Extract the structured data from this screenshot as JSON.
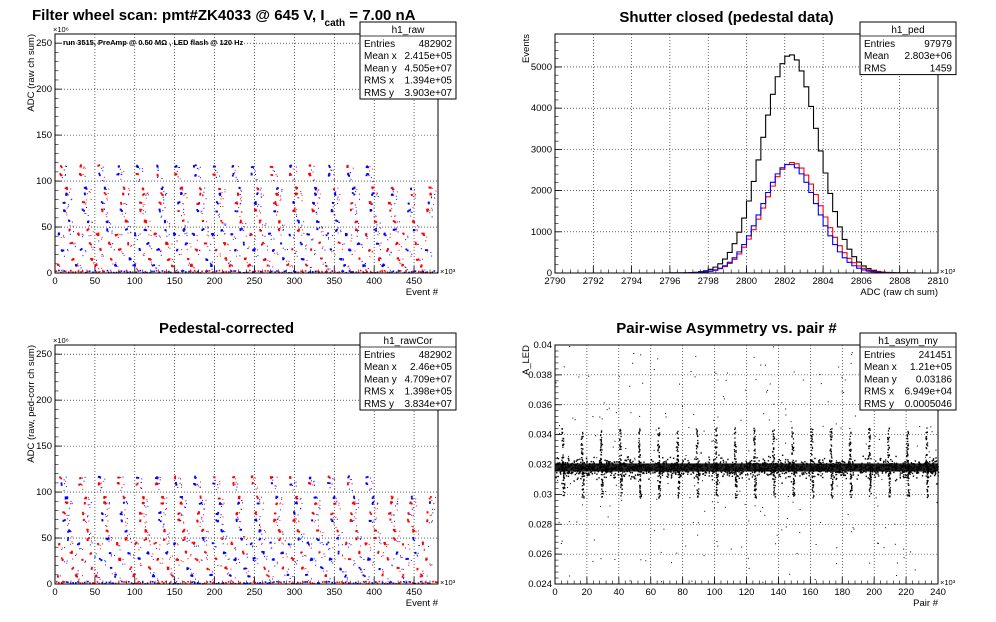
{
  "top_title": {
    "prefix": "Filter wheel scan: pmt#ZK4033 @   645 V, I",
    "sub": "cath",
    "suffix": " = 7.00 nA"
  },
  "chart_data": [
    {
      "id": "raw",
      "type": "scatter",
      "title": "",
      "annotation": "run 3515, PreAmp @ 0.50 MΩ , LED flash @  120 Hz",
      "xlabel": "Event #",
      "ylabel": "ADC (raw ch sum)",
      "x_exponent": "×10³",
      "y_exponent": "×10⁶",
      "xlim": [
        0,
        480
      ],
      "ylim": [
        0,
        260
      ],
      "xticks": [
        "0",
        "50",
        "100",
        "150",
        "200",
        "250",
        "300",
        "350",
        "400",
        "450"
      ],
      "yticks": [
        "0",
        "50",
        "100",
        "150",
        "200",
        "250"
      ],
      "grid": true,
      "series_colors": [
        "#ff0000",
        "#0000ff"
      ],
      "bands": [
        {
          "y": 117,
          "x_start": 5,
          "period": 24,
          "until": 410
        },
        {
          "y": 108,
          "x_start": 5,
          "period": 24,
          "until": 410
        },
        {
          "y": 93,
          "x_start": 12,
          "period": 24,
          "until": 470
        },
        {
          "y": 87,
          "x_start": 12,
          "period": 24,
          "until": 470
        },
        {
          "y": 77,
          "x_start": 9,
          "period": 24,
          "until": 470
        },
        {
          "y": 69,
          "x_start": 9,
          "period": 24,
          "until": 470
        },
        {
          "y": 57,
          "x_start": 15,
          "period": 24,
          "until": 470
        },
        {
          "y": 48,
          "x_start": 15,
          "period": 24,
          "until": 470
        },
        {
          "y": 43,
          "x_start": 3,
          "period": 24,
          "until": 470
        },
        {
          "y": 33,
          "x_start": 18,
          "period": 24,
          "until": 470
        },
        {
          "y": 26,
          "x_start": 7,
          "period": 24,
          "until": 470
        },
        {
          "y": 16,
          "x_start": 20,
          "period": 24,
          "until": 470
        },
        {
          "y": 9,
          "x_start": 1,
          "period": 24,
          "until": 470
        }
      ],
      "stats": {
        "name": "h1_raw",
        "rows": [
          [
            "Entries",
            "482902"
          ],
          [
            "Mean x",
            "2.415e+05"
          ],
          [
            "Mean y",
            "4.505e+07"
          ],
          [
            "RMS x",
            "1.394e+05"
          ],
          [
            "RMS y",
            "3.903e+07"
          ]
        ]
      }
    },
    {
      "id": "ped",
      "type": "line",
      "title": "Shutter closed (pedestal data)",
      "xlabel": "ADC (raw ch sum)",
      "ylabel": "Events",
      "x_exponent": "×10³",
      "xlim": [
        2790,
        2810
      ],
      "ylim": [
        0,
        5800
      ],
      "xticks": [
        "2790",
        "2792",
        "2794",
        "2796",
        "2798",
        "2800",
        "2802",
        "2804",
        "2806",
        "2808",
        "2810"
      ],
      "yticks": [
        "0",
        "1000",
        "2000",
        "3000",
        "4000",
        "5000"
      ],
      "grid": true,
      "series": [
        {
          "color": "#000000",
          "mean": 2802.3,
          "sigma": 1.46,
          "peak": 5300
        },
        {
          "color": "#ff0000",
          "mean": 2802.4,
          "sigma": 1.48,
          "peak": 2680
        },
        {
          "color": "#0000ff",
          "mean": 2802.25,
          "sigma": 1.45,
          "peak": 2640
        }
      ],
      "stats": {
        "name": "h1_ped",
        "rows": [
          [
            "Entries",
            "97979"
          ],
          [
            "Mean",
            "2.803e+06"
          ],
          [
            "RMS",
            "1459"
          ]
        ]
      }
    },
    {
      "id": "rawCor",
      "type": "scatter",
      "title": "Pedestal-corrected",
      "xlabel": "Event #",
      "ylabel": "ADC (raw, ped-corr ch sum)",
      "x_exponent": "×10³",
      "y_exponent": "×10⁶",
      "xlim": [
        0,
        480
      ],
      "ylim": [
        0,
        260
      ],
      "xticks": [
        "0",
        "50",
        "100",
        "150",
        "200",
        "250",
        "300",
        "350",
        "400",
        "450"
      ],
      "yticks": [
        "0",
        "50",
        "100",
        "150",
        "200",
        "250"
      ],
      "grid": true,
      "series_colors": [
        "#ff0000",
        "#0000ff"
      ],
      "bands": [
        {
          "y": 117,
          "x_start": 5,
          "period": 24,
          "until": 410
        },
        {
          "y": 110,
          "x_start": 5,
          "period": 24,
          "until": 410
        },
        {
          "y": 95,
          "x_start": 12,
          "period": 24,
          "until": 470
        },
        {
          "y": 89,
          "x_start": 12,
          "period": 24,
          "until": 470
        },
        {
          "y": 78,
          "x_start": 9,
          "period": 24,
          "until": 470
        },
        {
          "y": 70,
          "x_start": 9,
          "period": 24,
          "until": 470
        },
        {
          "y": 59,
          "x_start": 15,
          "period": 24,
          "until": 470
        },
        {
          "y": 50,
          "x_start": 15,
          "period": 24,
          "until": 470
        },
        {
          "y": 45,
          "x_start": 3,
          "period": 24,
          "until": 470
        },
        {
          "y": 35,
          "x_start": 18,
          "period": 24,
          "until": 470
        },
        {
          "y": 28,
          "x_start": 7,
          "period": 24,
          "until": 470
        },
        {
          "y": 18,
          "x_start": 20,
          "period": 24,
          "until": 470
        },
        {
          "y": 10,
          "x_start": 1,
          "period": 24,
          "until": 470
        }
      ],
      "stats": {
        "name": "h1_rawCor",
        "rows": [
          [
            "Entries",
            "482902"
          ],
          [
            "Mean x",
            "2.46e+05"
          ],
          [
            "Mean y",
            "4.709e+07"
          ],
          [
            "RMS x",
            "1.398e+05"
          ],
          [
            "RMS y",
            "3.834e+07"
          ]
        ]
      }
    },
    {
      "id": "asym",
      "type": "scatter",
      "title": "Pair-wise Asymmetry vs. pair #",
      "xlabel": "Pair #",
      "ylabel": "A_LED",
      "x_exponent": "×10³",
      "xlim": [
        0,
        240
      ],
      "ylim": [
        0.024,
        0.04
      ],
      "xticks": [
        "0",
        "20",
        "40",
        "60",
        "80",
        "100",
        "120",
        "140",
        "160",
        "180",
        "200",
        "220",
        "240"
      ],
      "yticks": [
        "0.024",
        "0.026",
        "0.028",
        "0.03",
        "0.032",
        "0.034",
        "0.036",
        "0.038",
        "0.04"
      ],
      "grid": true,
      "baseline": 0.0318,
      "band_halfwidth": 0.0005,
      "spike_period": 12,
      "spike_start": 4,
      "spike_up": 0.0345,
      "spike_down": 0.0298,
      "stats": {
        "name": "h1_asym_my",
        "rows": [
          [
            "Entries",
            "241451"
          ],
          [
            "Mean x",
            "1.21e+05"
          ],
          [
            "Mean y",
            "0.03186"
          ],
          [
            "RMS x",
            "6.949e+04"
          ],
          [
            "RMS y",
            "0.0005046"
          ]
        ]
      }
    }
  ]
}
